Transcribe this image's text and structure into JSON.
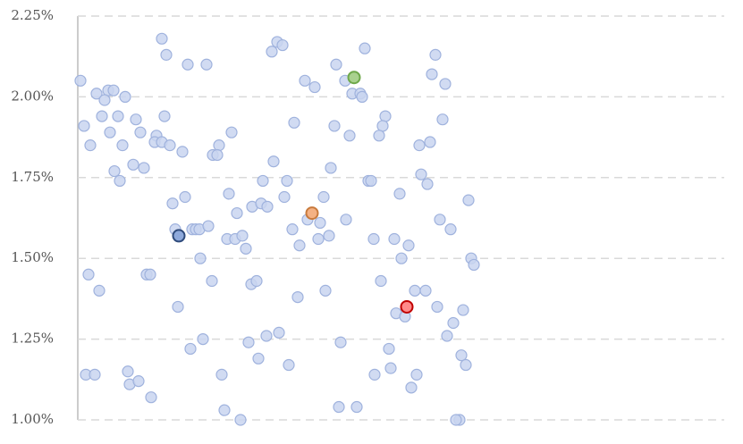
{
  "chart_data": {
    "type": "scatter",
    "xlim": [
      0,
      723
    ],
    "ylim": [
      1,
      2.25
    ],
    "yticks": [
      {
        "value": 1,
        "label": "1.00%"
      },
      {
        "value": 1.25,
        "label": "1.25%"
      },
      {
        "value": 1.5,
        "label": "1.50%"
      },
      {
        "value": 1.75,
        "label": "1.75%"
      },
      {
        "value": 2,
        "label": "2.00%"
      },
      {
        "value": 2.25,
        "label": "2.25%"
      }
    ],
    "grid": true,
    "series": [
      {
        "color": "#c9d5f0",
        "edgecolor": "#9fb2dd",
        "x": [
          3,
          7,
          14,
          21,
          34,
          40,
          30,
          27,
          36,
          53,
          45,
          50,
          65,
          70,
          62,
          74,
          41,
          47,
          94,
          99,
          97,
          88,
          86,
          94,
          103,
          117,
          123,
          144,
          158,
          172,
          151,
          156,
          120,
          106,
          109,
          128,
          132,
          136,
          146,
          137,
          112,
          150,
          126,
          140,
          77,
          81,
          12,
          24,
          9,
          19,
          56,
          58,
          68,
          82,
          161,
          164,
          182,
          169,
          178,
          167,
          176,
          184,
          188,
          195,
          205,
          212,
          207,
          219,
          231,
          234,
          194,
          200,
          191,
          202,
          211,
          225,
          236,
          246,
          240,
          248,
          217,
          223,
          229,
          242,
          254,
          265,
          289,
          299,
          307,
          316,
          318,
          321,
          287,
          304,
          283,
          275,
          257,
          271,
          269,
          281,
          300,
          277,
          294,
          292,
          312,
          325,
          328,
          331,
          339,
          344,
          341,
          337,
          360,
          354,
          362,
          370,
          356,
          366,
          377,
          389,
          348,
          350,
          332,
          373,
          379,
          400,
          396,
          411,
          408,
          394,
          382,
          384,
          391,
          405,
          417,
          437,
          440,
          443,
          402,
          431,
          420,
          413,
          429,
          434,
          427,
          423
        ],
        "values": [
          2.05,
          1.91,
          1.85,
          2.01,
          2.02,
          2.02,
          1.99,
          1.94,
          1.89,
          2.0,
          1.94,
          1.85,
          1.93,
          1.89,
          1.79,
          1.78,
          1.77,
          1.74,
          2.18,
          2.13,
          1.94,
          1.88,
          1.86,
          1.86,
          1.85,
          1.83,
          2.1,
          2.1,
          1.85,
          1.89,
          1.82,
          1.82,
          1.69,
          1.67,
          1.59,
          1.59,
          1.59,
          1.59,
          1.6,
          1.5,
          1.35,
          1.43,
          1.22,
          1.25,
          1.45,
          1.45,
          1.45,
          1.4,
          1.14,
          1.14,
          1.15,
          1.11,
          1.12,
          1.07,
          1.14,
          1.03,
          1.0,
          1.7,
          1.64,
          1.56,
          1.56,
          1.57,
          1.53,
          1.66,
          1.67,
          1.66,
          1.74,
          1.8,
          1.69,
          1.74,
          1.42,
          1.43,
          1.24,
          1.19,
          1.26,
          1.27,
          1.17,
          1.38,
          1.59,
          1.54,
          2.14,
          2.17,
          2.16,
          1.92,
          2.05,
          2.03,
          2.1,
          2.05,
          2.01,
          2.01,
          2.0,
          2.15,
          1.91,
          1.88,
          1.78,
          1.69,
          1.62,
          1.61,
          1.56,
          1.57,
          1.62,
          1.4,
          1.24,
          1.04,
          1.04,
          1.74,
          1.74,
          1.56,
          1.43,
          1.94,
          1.91,
          1.88,
          1.7,
          1.56,
          1.5,
          1.54,
          1.33,
          1.32,
          1.4,
          1.4,
          1.22,
          1.16,
          1.14,
          1.1,
          1.14,
          2.13,
          2.07,
          2.04,
          1.93,
          1.86,
          1.85,
          1.76,
          1.73,
          1.62,
          1.59,
          1.68,
          1.5,
          1.48,
          1.35,
          1.34,
          1.3,
          1.26,
          1.2,
          1.17,
          1.0,
          1.0
        ]
      },
      {
        "color": "#a9d18e",
        "edgecolor": "#6ea84a",
        "x": [
          309
        ],
        "values": [
          2.06
        ]
      },
      {
        "color": "#f4b183",
        "edgecolor": "#c87a3c",
        "x": [
          262
        ],
        "values": [
          1.64
        ]
      },
      {
        "color": "#8ea9db",
        "edgecolor": "#2f4b7c",
        "x": [
          113
        ],
        "values": [
          1.57
        ]
      },
      {
        "color": "#ff8a8a",
        "edgecolor": "#c00000",
        "x": [
          368
        ],
        "values": [
          1.35
        ]
      }
    ]
  }
}
